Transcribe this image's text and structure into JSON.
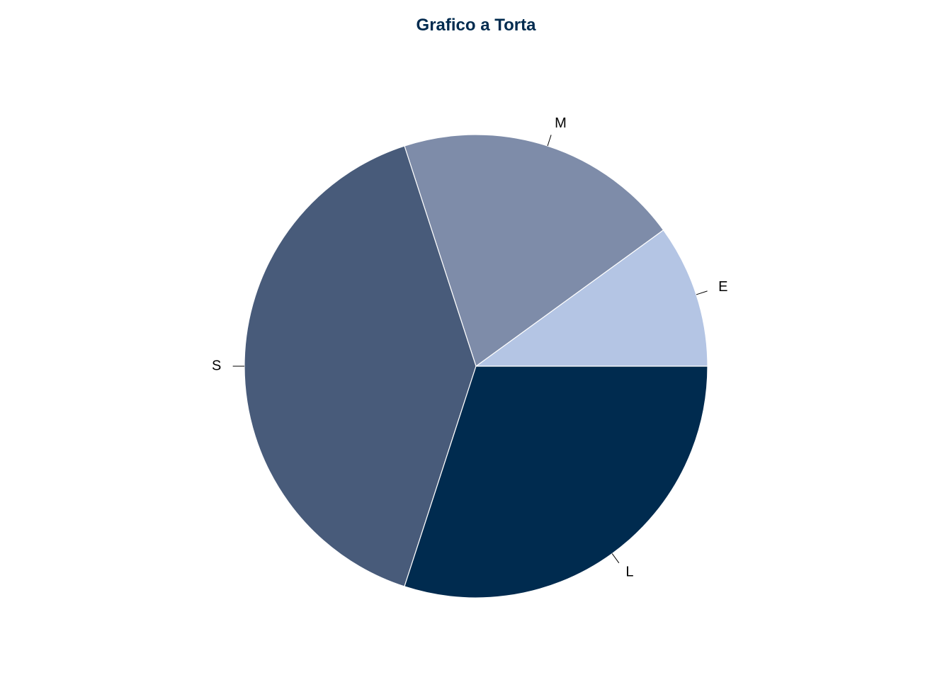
{
  "chart_data": {
    "type": "pie",
    "title": "Grafico a Torta",
    "start_angle_deg": 0,
    "direction": "counterclockwise",
    "slices": [
      {
        "label": "E",
        "value": 10,
        "color": "#b4c5e4"
      },
      {
        "label": "M",
        "value": 20,
        "color": "#7e8ca9"
      },
      {
        "label": "S",
        "value": 40,
        "color": "#485b7a"
      },
      {
        "label": "L",
        "value": 30,
        "color": "#002b4f"
      }
    ]
  }
}
